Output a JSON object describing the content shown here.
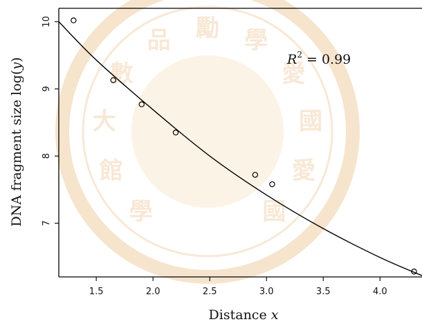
{
  "chart_data": {
    "type": "scatter",
    "xlabel_prefix": "Distance ",
    "xlabel_var": "x",
    "ylabel_prefix": "DNA fragment size log(",
    "ylabel_var": "y",
    "ylabel_suffix": ")",
    "annotation": {
      "r_symbol": "R",
      "r_exp": "2",
      "eq": " = 0.99"
    },
    "xlim": [
      1.17,
      4.37
    ],
    "ylim": [
      6.2,
      10.2
    ],
    "x_ticks": [
      "1.5",
      "2.0",
      "2.5",
      "3.0",
      "3.5",
      "4.0"
    ],
    "y_ticks": [
      "7",
      "8",
      "9",
      "10"
    ],
    "points": [
      {
        "x": 1.3,
        "y": 10.02
      },
      {
        "x": 1.65,
        "y": 9.13
      },
      {
        "x": 1.9,
        "y": 8.77
      },
      {
        "x": 2.2,
        "y": 8.35
      },
      {
        "x": 2.9,
        "y": 7.72
      },
      {
        "x": 3.05,
        "y": 7.58
      },
      {
        "x": 4.3,
        "y": 6.28
      }
    ],
    "fit_curve": [
      {
        "x": 1.17,
        "y": 10.0
      },
      {
        "x": 1.5,
        "y": 9.43
      },
      {
        "x": 2.0,
        "y": 8.69
      },
      {
        "x": 2.5,
        "y": 8.0
      },
      {
        "x": 3.0,
        "y": 7.42
      },
      {
        "x": 3.5,
        "y": 6.92
      },
      {
        "x": 4.0,
        "y": 6.49
      },
      {
        "x": 4.37,
        "y": 6.22
      }
    ],
    "grid": false,
    "legend": "none"
  },
  "watermark": {
    "color": "#e8b070",
    "characters": [
      "學",
      "館",
      "大",
      "數",
      "品",
      "勵",
      "學",
      "愛",
      "國",
      "愛",
      "國"
    ]
  }
}
